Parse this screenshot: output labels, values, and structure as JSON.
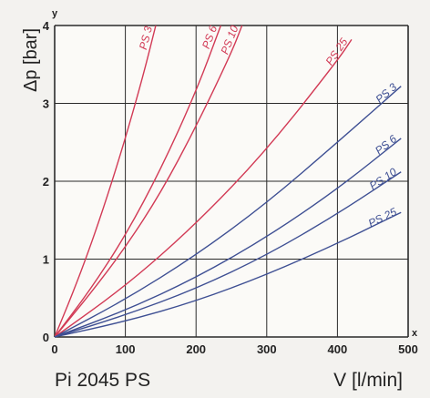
{
  "caption": "Pi 2045 PS",
  "chart_data": {
    "type": "line",
    "xlabel": "V [l/min]",
    "ylabel": "Δp [bar]",
    "x_axis_letter": "x",
    "y_axis_letter": "y",
    "xlim": [
      0,
      500
    ],
    "ylim": [
      0,
      4
    ],
    "x_ticks": [
      "0",
      "100",
      "200",
      "300",
      "400",
      "500"
    ],
    "y_ticks": [
      "0",
      "1",
      "2",
      "3",
      "4"
    ],
    "grid": true,
    "colors": {
      "red": "#d23a55",
      "blue": "#3e4f93",
      "grid": "#2a2a2a",
      "background": "#fbfaf7"
    },
    "series": [
      {
        "name": "PS 3",
        "color": "red",
        "x": [
          0,
          25,
          50,
          75,
          100,
          125,
          143
        ],
        "y": [
          0,
          0.55,
          1.15,
          1.82,
          2.55,
          3.35,
          4.0
        ]
      },
      {
        "name": "PS 6",
        "color": "red",
        "x": [
          0,
          50,
          100,
          150,
          200,
          235
        ],
        "y": [
          0,
          0.6,
          1.3,
          2.15,
          3.15,
          4.0
        ]
      },
      {
        "name": "PS 10",
        "color": "red",
        "x": [
          0,
          50,
          100,
          150,
          200,
          250,
          265
        ],
        "y": [
          0,
          0.55,
          1.15,
          1.85,
          2.7,
          3.65,
          4.0
        ]
      },
      {
        "name": "PS 25",
        "color": "red",
        "x": [
          0,
          100,
          200,
          300,
          400,
          420
        ],
        "y": [
          0,
          0.65,
          1.45,
          2.4,
          3.55,
          3.82
        ]
      },
      {
        "name": "PS 3",
        "color": "blue",
        "x": [
          0,
          100,
          200,
          300,
          400,
          490
        ],
        "y": [
          0,
          0.48,
          1.05,
          1.72,
          2.5,
          3.22
        ]
      },
      {
        "name": "PS 6",
        "color": "blue",
        "x": [
          0,
          100,
          200,
          300,
          400,
          490
        ],
        "y": [
          0,
          0.34,
          0.76,
          1.28,
          1.9,
          2.55
        ]
      },
      {
        "name": "PS 10",
        "color": "blue",
        "x": [
          0,
          100,
          200,
          300,
          400,
          490
        ],
        "y": [
          0,
          0.28,
          0.62,
          1.05,
          1.58,
          2.12
        ]
      },
      {
        "name": "PS 25",
        "color": "blue",
        "x": [
          0,
          100,
          200,
          300,
          400,
          490
        ],
        "y": [
          0,
          0.2,
          0.46,
          0.8,
          1.2,
          1.6
        ]
      }
    ]
  }
}
